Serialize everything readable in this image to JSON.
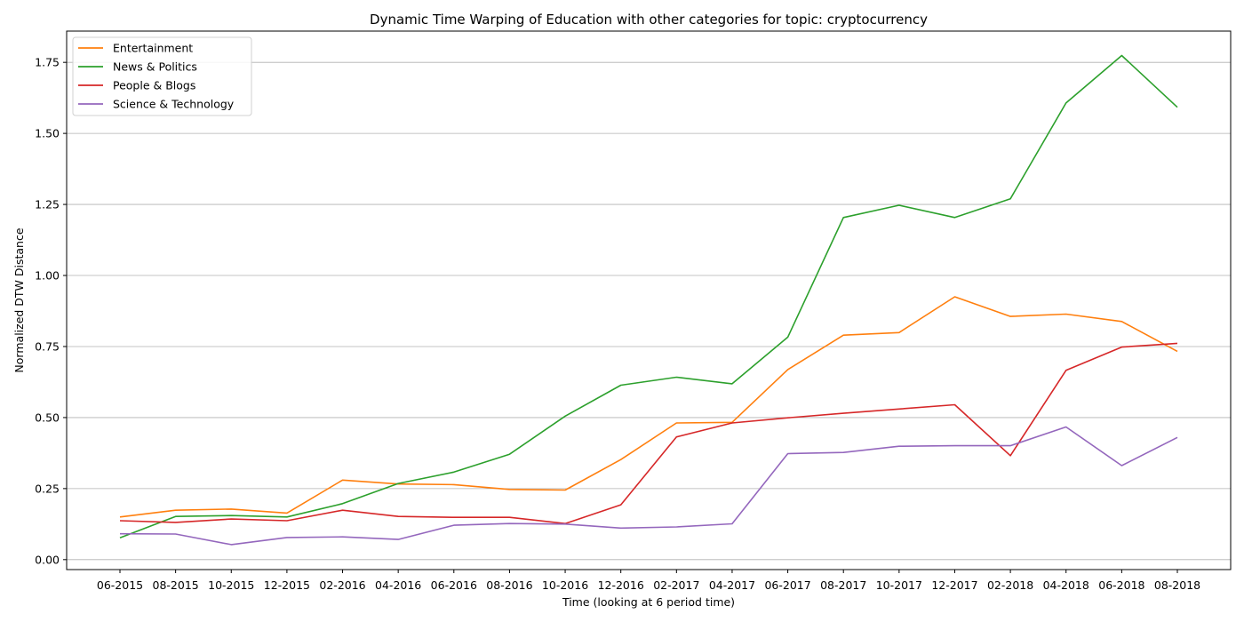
{
  "chart_data": {
    "type": "line",
    "title": "Dynamic Time Warping of Education with other categories for topic: cryptocurrency",
    "xlabel": "Time (looking at 6 period time)",
    "ylabel": "Normalized DTW Distance",
    "ylim": [
      -0.035,
      1.86
    ],
    "yticks": [
      "0.00",
      "0.25",
      "0.50",
      "0.75",
      "1.00",
      "1.25",
      "1.50",
      "1.75"
    ],
    "ytick_values": [
      0,
      0.25,
      0.5,
      0.75,
      1.0,
      1.25,
      1.5,
      1.75
    ],
    "grid": "horizontal",
    "legend_position": "top-left",
    "categories": [
      "06-2015",
      "08-2015",
      "10-2015",
      "12-2015",
      "02-2016",
      "04-2016",
      "06-2016",
      "08-2016",
      "10-2016",
      "12-2016",
      "02-2017",
      "04-2017",
      "06-2017",
      "08-2017",
      "10-2017",
      "12-2017",
      "02-2018",
      "04-2018",
      "06-2018",
      "08-2018"
    ],
    "series": [
      {
        "name": "Entertainment",
        "color": "#ff7f0e",
        "values": [
          0.15,
          0.174,
          0.178,
          0.164,
          0.28,
          0.266,
          0.264,
          0.247,
          0.245,
          0.352,
          0.481,
          0.483,
          0.669,
          0.79,
          0.799,
          0.925,
          0.856,
          0.864,
          0.838,
          0.733
        ]
      },
      {
        "name": "News & Politics",
        "color": "#2ca02c",
        "values": [
          0.077,
          0.152,
          0.155,
          0.15,
          0.197,
          0.268,
          0.308,
          0.371,
          0.505,
          0.614,
          0.642,
          0.619,
          0.783,
          1.204,
          1.247,
          1.204,
          1.27,
          1.607,
          1.774,
          1.592
        ]
      },
      {
        "name": "People & Blogs",
        "color": "#d62728",
        "values": [
          0.137,
          0.131,
          0.143,
          0.137,
          0.174,
          0.152,
          0.149,
          0.149,
          0.127,
          0.193,
          0.432,
          0.481,
          0.499,
          0.515,
          0.53,
          0.545,
          0.366,
          0.666,
          0.748,
          0.761
        ]
      },
      {
        "name": "Science & Technology",
        "color": "#9467bd",
        "values": [
          0.091,
          0.09,
          0.053,
          0.078,
          0.08,
          0.071,
          0.121,
          0.127,
          0.125,
          0.111,
          0.115,
          0.126,
          0.373,
          0.377,
          0.399,
          0.401,
          0.401,
          0.467,
          0.331,
          0.43
        ]
      }
    ]
  }
}
